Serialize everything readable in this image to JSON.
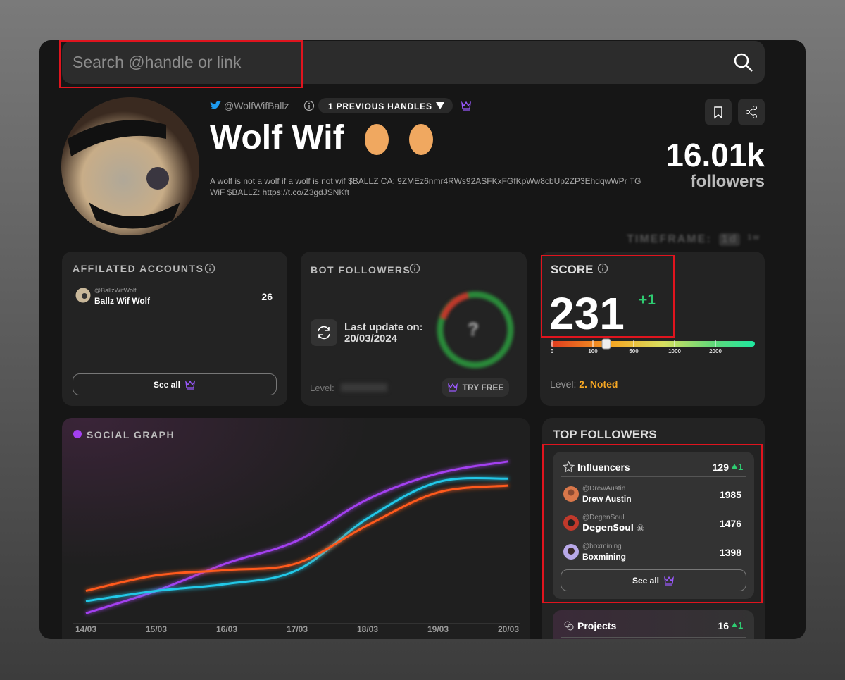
{
  "search": {
    "placeholder": "Search @handle or link"
  },
  "profile": {
    "handle": "@WolfWifBallz",
    "previous_handles": "1 PREVIOUS HANDLES",
    "name": "Wolf Wif",
    "bio": "A wolf is not a wolf if a wolf is not wif $BALLZ CA: 9ZMEz6nmr4RWs92ASFKxFGfKpWw8cbUp2ZP3EhdqwWPr TG WiF $BALLZ: https://t.co/Z3gdJSNKft",
    "followers_count": "16.01k",
    "followers_label": "followers"
  },
  "timeframe": {
    "label": "TIMEFRAME:",
    "options": [
      "1d",
      "1w"
    ]
  },
  "affiliated": {
    "title": "AFFILATED ACCOUNTS",
    "accounts": [
      {
        "handle": "@BallzWifWolf",
        "name": "Ballz Wif Wolf",
        "count": "26"
      }
    ],
    "see_all": "See all"
  },
  "bot_followers": {
    "title": "BOT FOLLOWERS",
    "update_label": "Last update on:",
    "update_date": "20/03/2024",
    "unknown": "?",
    "level_label": "Level:",
    "cta": "TRY FREE"
  },
  "score": {
    "title": "SCORE",
    "value": 231,
    "change": "+1",
    "scale_ticks": [
      0,
      100,
      500,
      1000,
      2000
    ],
    "level_label": "Level:",
    "level": "2. Noted"
  },
  "chart_data": {
    "type": "line",
    "title": "SOCIAL GRAPH",
    "categories": [
      "14/03",
      "15/03",
      "16/03",
      "17/03",
      "18/03",
      "19/03",
      "20/03"
    ],
    "ylim": [
      0,
      100
    ],
    "grid": false,
    "series": [
      {
        "color": "#a340f0",
        "values": [
          6,
          19,
          35,
          48,
          72,
          87,
          94
        ]
      },
      {
        "color": "#22c8e8",
        "values": [
          13,
          19,
          23,
          31,
          61,
          82,
          84
        ]
      },
      {
        "color": "#ff5a1f",
        "values": [
          19,
          28,
          31,
          35,
          57,
          76,
          80
        ]
      }
    ]
  },
  "top_followers": {
    "title": "TOP FOLLOWERS",
    "influencers": {
      "label": "Influencers",
      "count": "129",
      "change": "1",
      "rows": [
        {
          "handle": "@DrewAustin",
          "name": "Drew Austin",
          "score": "1985"
        },
        {
          "handle": "@DegenSoul",
          "name": "DegenSoul ☠",
          "score": "1476"
        },
        {
          "handle": "@boxmining",
          "name": "Boxmining",
          "score": "1398"
        }
      ],
      "see_all": "See all"
    },
    "projects": {
      "label": "Projects",
      "count": "16",
      "change": "1"
    }
  }
}
